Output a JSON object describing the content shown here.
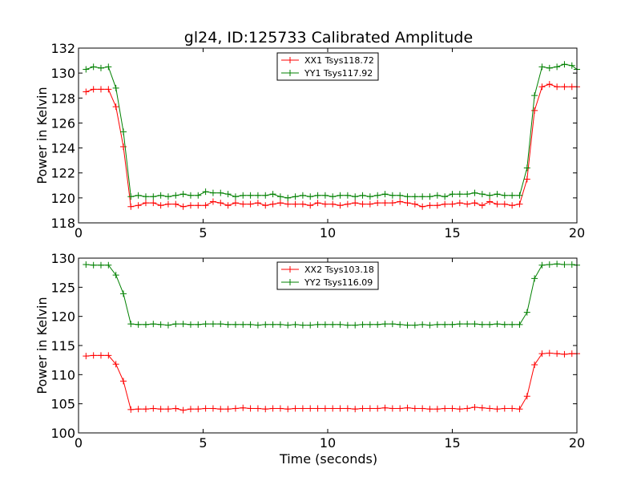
{
  "chart_data": [
    {
      "type": "line",
      "title": "gl24, ID:125733 Calibrated Amplitude",
      "xlabel": "",
      "ylabel": "Power in Kelvin",
      "xlim": [
        0,
        20
      ],
      "ylim": [
        118,
        132
      ],
      "xticks": [
        "0",
        "5",
        "10",
        "15",
        "20"
      ],
      "yticks": [
        "118",
        "120",
        "122",
        "124",
        "126",
        "128",
        "130",
        "132"
      ],
      "grid": false,
      "legend_position": "top-center",
      "x": [
        0.3,
        0.6,
        0.9,
        1.2,
        1.5,
        1.8,
        2.1,
        2.4,
        2.7,
        3.0,
        3.3,
        3.6,
        3.9,
        4.2,
        4.5,
        4.8,
        5.1,
        5.4,
        5.7,
        6.0,
        6.3,
        6.6,
        6.9,
        7.2,
        7.5,
        7.8,
        8.1,
        8.4,
        8.7,
        9.0,
        9.3,
        9.6,
        9.9,
        10.2,
        10.5,
        10.8,
        11.1,
        11.4,
        11.7,
        12.0,
        12.3,
        12.6,
        12.9,
        13.2,
        13.5,
        13.8,
        14.1,
        14.4,
        14.7,
        15.0,
        15.3,
        15.6,
        15.9,
        16.2,
        16.5,
        16.8,
        17.1,
        17.4,
        17.7,
        18.0,
        18.3,
        18.6,
        18.9,
        19.2,
        19.5,
        19.8,
        20.0
      ],
      "series": [
        {
          "name": "XX1 Tsys118.72",
          "color": "#ff0000",
          "values": [
            128.5,
            128.7,
            128.7,
            128.7,
            127.3,
            124.1,
            119.3,
            119.4,
            119.6,
            119.6,
            119.4,
            119.5,
            119.5,
            119.3,
            119.4,
            119.4,
            119.4,
            119.7,
            119.6,
            119.4,
            119.6,
            119.5,
            119.5,
            119.6,
            119.4,
            119.5,
            119.6,
            119.5,
            119.5,
            119.5,
            119.4,
            119.6,
            119.5,
            119.5,
            119.4,
            119.5,
            119.6,
            119.5,
            119.5,
            119.6,
            119.6,
            119.6,
            119.7,
            119.6,
            119.5,
            119.3,
            119.4,
            119.4,
            119.5,
            119.5,
            119.6,
            119.5,
            119.6,
            119.4,
            119.7,
            119.5,
            119.5,
            119.4,
            119.5,
            121.5,
            127.0,
            128.9,
            129.1,
            128.9,
            128.9,
            128.9,
            128.9
          ]
        },
        {
          "name": "YY1 Tsys117.92",
          "color": "#008000",
          "values": [
            130.3,
            130.5,
            130.4,
            130.5,
            128.8,
            125.3,
            120.1,
            120.2,
            120.1,
            120.1,
            120.2,
            120.1,
            120.2,
            120.3,
            120.2,
            120.2,
            120.5,
            120.4,
            120.4,
            120.3,
            120.1,
            120.2,
            120.2,
            120.2,
            120.2,
            120.3,
            120.1,
            120.0,
            120.1,
            120.2,
            120.1,
            120.2,
            120.2,
            120.1,
            120.2,
            120.2,
            120.1,
            120.2,
            120.1,
            120.2,
            120.3,
            120.2,
            120.2,
            120.1,
            120.1,
            120.1,
            120.1,
            120.2,
            120.1,
            120.3,
            120.3,
            120.3,
            120.4,
            120.3,
            120.2,
            120.3,
            120.2,
            120.2,
            120.2,
            122.4,
            128.2,
            130.5,
            130.4,
            130.5,
            130.7,
            130.6,
            130.3
          ]
        }
      ]
    },
    {
      "type": "line",
      "title": "",
      "xlabel": "Time (seconds)",
      "ylabel": "Power in Kelvin",
      "xlim": [
        0,
        20
      ],
      "ylim": [
        100,
        130
      ],
      "xticks": [
        "0",
        "5",
        "10",
        "15",
        "20"
      ],
      "yticks": [
        "100",
        "105",
        "110",
        "115",
        "120",
        "125",
        "130"
      ],
      "grid": false,
      "legend_position": "top-center",
      "x": [
        0.3,
        0.6,
        0.9,
        1.2,
        1.5,
        1.8,
        2.1,
        2.4,
        2.7,
        3.0,
        3.3,
        3.6,
        3.9,
        4.2,
        4.5,
        4.8,
        5.1,
        5.4,
        5.7,
        6.0,
        6.3,
        6.6,
        6.9,
        7.2,
        7.5,
        7.8,
        8.1,
        8.4,
        8.7,
        9.0,
        9.3,
        9.6,
        9.9,
        10.2,
        10.5,
        10.8,
        11.1,
        11.4,
        11.7,
        12.0,
        12.3,
        12.6,
        12.9,
        13.2,
        13.5,
        13.8,
        14.1,
        14.4,
        14.7,
        15.0,
        15.3,
        15.6,
        15.9,
        16.2,
        16.5,
        16.8,
        17.1,
        17.4,
        17.7,
        18.0,
        18.3,
        18.6,
        18.9,
        19.2,
        19.5,
        19.8,
        20.0
      ],
      "series": [
        {
          "name": "XX2 Tsys103.18",
          "color": "#ff0000",
          "values": [
            113.2,
            113.3,
            113.3,
            113.3,
            111.8,
            108.9,
            104.0,
            104.1,
            104.1,
            104.2,
            104.1,
            104.1,
            104.2,
            103.9,
            104.1,
            104.1,
            104.2,
            104.2,
            104.1,
            104.1,
            104.2,
            104.3,
            104.2,
            104.2,
            104.1,
            104.2,
            104.2,
            104.1,
            104.2,
            104.2,
            104.2,
            104.2,
            104.2,
            104.2,
            104.2,
            104.2,
            104.1,
            104.2,
            104.2,
            104.2,
            104.3,
            104.2,
            104.2,
            104.3,
            104.2,
            104.2,
            104.1,
            104.1,
            104.2,
            104.2,
            104.1,
            104.2,
            104.4,
            104.3,
            104.2,
            104.1,
            104.2,
            104.2,
            104.1,
            106.3,
            111.7,
            113.6,
            113.7,
            113.6,
            113.5,
            113.6,
            113.6
          ]
        },
        {
          "name": "YY2 Tsys116.09",
          "color": "#008000",
          "values": [
            128.9,
            128.8,
            128.8,
            128.8,
            127.1,
            123.9,
            118.7,
            118.6,
            118.6,
            118.7,
            118.6,
            118.5,
            118.7,
            118.7,
            118.6,
            118.6,
            118.7,
            118.7,
            118.7,
            118.6,
            118.6,
            118.6,
            118.6,
            118.5,
            118.6,
            118.6,
            118.6,
            118.5,
            118.6,
            118.5,
            118.5,
            118.6,
            118.6,
            118.6,
            118.6,
            118.5,
            118.5,
            118.6,
            118.6,
            118.6,
            118.7,
            118.7,
            118.6,
            118.5,
            118.5,
            118.6,
            118.5,
            118.6,
            118.6,
            118.6,
            118.7,
            118.7,
            118.7,
            118.6,
            118.6,
            118.7,
            118.6,
            118.6,
            118.6,
            120.7,
            126.5,
            128.8,
            128.9,
            129.0,
            128.9,
            128.9,
            128.8
          ]
        }
      ]
    }
  ]
}
